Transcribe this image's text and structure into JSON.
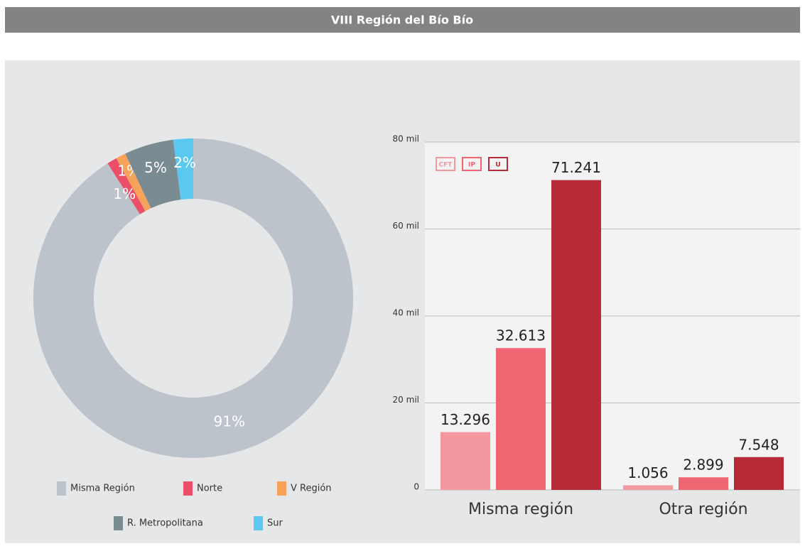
{
  "header": {
    "title": "VIII Región del Bío Bío"
  },
  "chart_data": [
    {
      "type": "donut",
      "series": [
        {
          "name": "Misma Región",
          "color": "#bcc3ca",
          "value": 91,
          "value_label": "91%"
        },
        {
          "name": "Norte",
          "color": "#ec5068",
          "value": 1,
          "value_label": "1%"
        },
        {
          "name": "V Región",
          "color": "#f7a45a",
          "value": 1,
          "value_label": "1%"
        },
        {
          "name": "R. Metropolitana",
          "color": "#7a8c92",
          "value": 5,
          "value_label": "5%"
        },
        {
          "name": "Sur",
          "color": "#5bc8f0",
          "value": 2,
          "value_label": "2%"
        }
      ]
    },
    {
      "type": "bar",
      "categories": [
        "Misma región",
        "Otra región"
      ],
      "series": [
        {
          "name": "CFT",
          "color": "#f4989f",
          "values": [
            13296,
            1056
          ],
          "value_labels": [
            "13.296",
            "1.056"
          ]
        },
        {
          "name": "IP",
          "color": "#ef6572",
          "values": [
            32613,
            2899
          ],
          "value_labels": [
            "32.613",
            "2.899"
          ]
        },
        {
          "name": "U",
          "color": "#b72a38",
          "values": [
            71241,
            7548
          ],
          "value_labels": [
            "71.241",
            "7.548"
          ]
        }
      ],
      "ylim": [
        0,
        80000
      ],
      "yticks": [
        0,
        {
          "value": 20000,
          "label": "20 mil"
        },
        {
          "value": 40000,
          "label": "40 mil"
        },
        {
          "value": 60000,
          "label": "60 mil"
        },
        {
          "value": 80000,
          "label": "80 mil"
        }
      ],
      "grid": true
    }
  ]
}
